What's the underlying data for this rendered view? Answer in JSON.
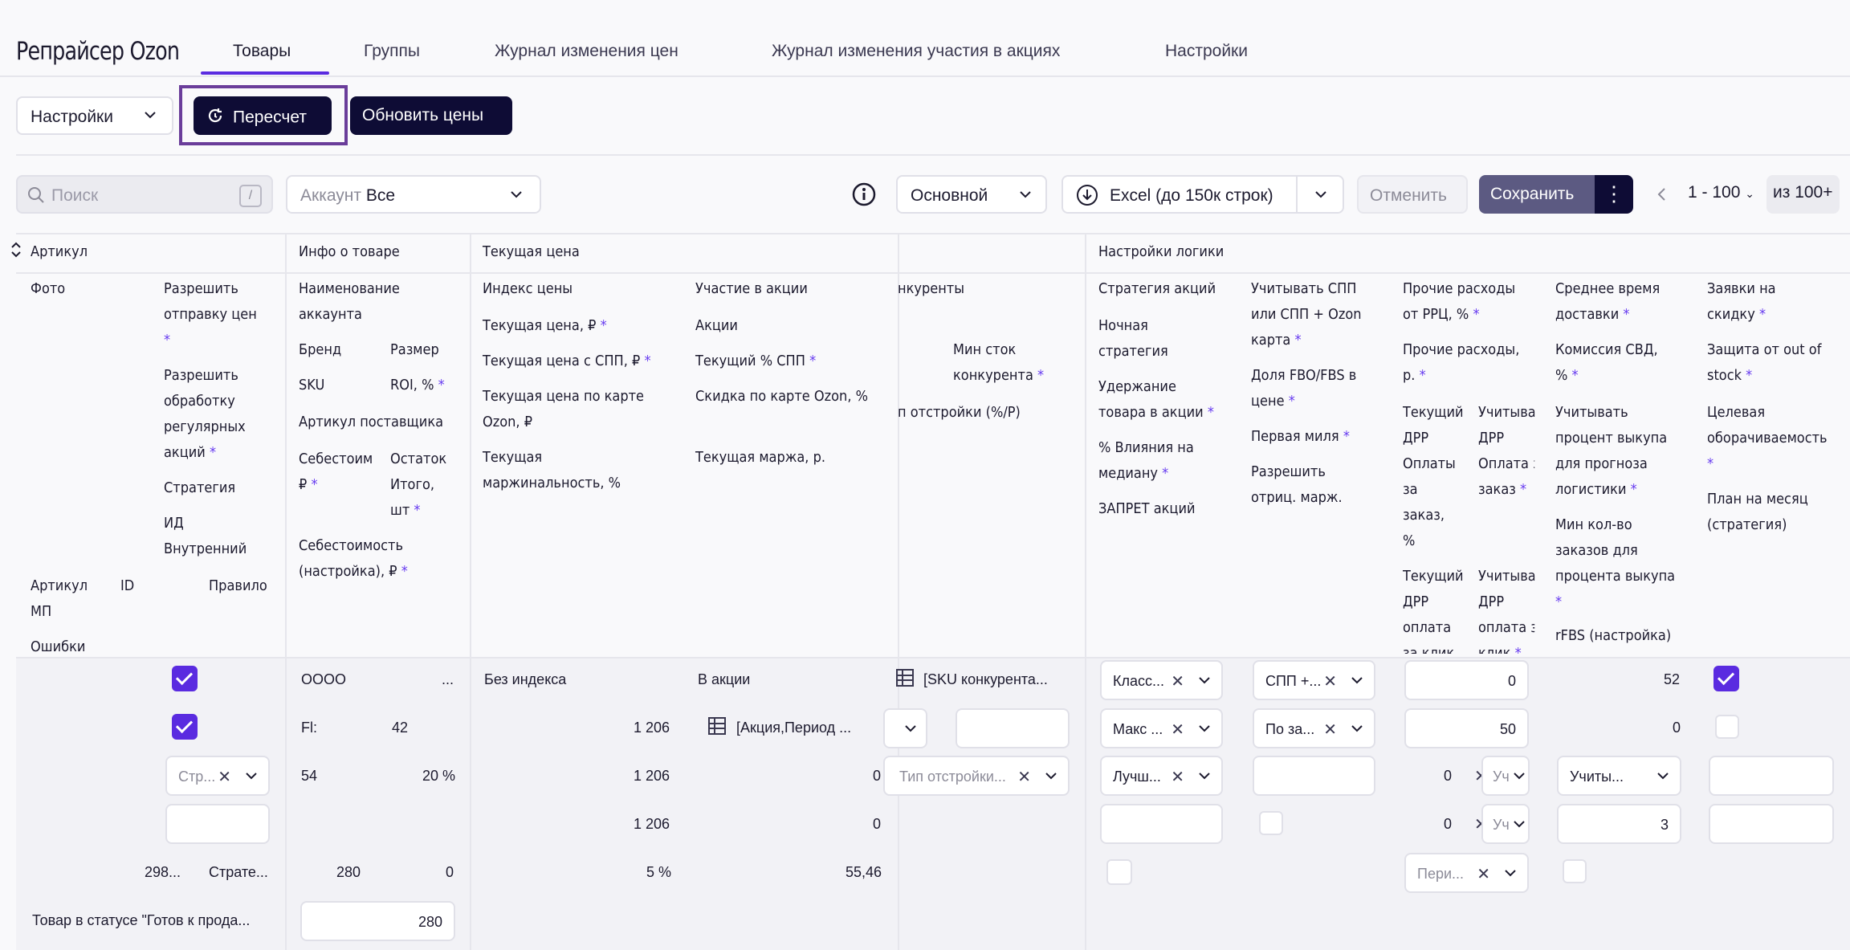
{
  "app": {
    "title": "Репрайсер Ozon"
  },
  "tabs": [
    "Товары",
    "Группы",
    "Журнал изменения цен",
    "Журнал изменения участия в акциях",
    "Настройки"
  ],
  "toolbar": {
    "settings_select": "Настройки",
    "recalc": "Пересчет",
    "update_prices": "Обновить цены"
  },
  "filters": {
    "search_placeholder": "Поиск",
    "search_kbd": "/",
    "account_label": "Аккаунт",
    "account_value": "Все",
    "view_select": "Основной",
    "excel": "Excel (до 150к строк)",
    "cancel": "Отменить",
    "save": "Сохранить",
    "pager_range": "1 - 100",
    "pager_total": "из 100+"
  },
  "groups": [
    "Артикул",
    "Инфо о товаре",
    "Текущая цена",
    "Настройки логики"
  ],
  "headers": {
    "photo": "Фото",
    "allow_send_1": "Разрешить",
    "allow_send_2": "отправку цен",
    "allow_reg_1": "Разрешить",
    "allow_reg_2": "обработку",
    "allow_reg_3": "регулярных",
    "allow_reg_4": "акций",
    "strategy": "Стратегия",
    "int_id_1": "ИД",
    "int_id_2": "Внутренний",
    "art_mp_1": "Артикул",
    "art_mp_2": "МП",
    "id": "ID",
    "rule": "Правило",
    "errors": "Ошибки",
    "acc_name_1": "Наименование",
    "acc_name_2": "аккаунта",
    "brand": "Бренд",
    "size": "Размер",
    "sku": "SKU",
    "roi": "ROI, %",
    "vendor_art": "Артикул поставщика",
    "cost_1": "Себестоим",
    "cost_2": "₽",
    "stock_1": "Остаток",
    "stock_2": "Итого,",
    "stock_3": "шт",
    "cost_set_1": "Себестоимость",
    "cost_set_2": "(настройка), ₽",
    "price_index": "Индекс цены",
    "cur_price": "Текущая цена, ₽",
    "cur_price_spp": "Текущая цена с СПП, ₽",
    "cur_price_card_1": "Текущая цена по карте",
    "cur_price_card_2": "Ozon, ₽",
    "cur_margin_1": "Текущая",
    "cur_margin_2": "маржинальность, %",
    "promo_part": "Участие в акции",
    "promos": "Акции",
    "cur_spp": "Текущий % СПП",
    "card_discount": "Скидка по карте Ozon, %",
    "cur_margin_rub": "Текущая маржа, р.",
    "competitors": "нкуренты",
    "min_stock_1": "Мин сток",
    "min_stock_2": "конкурента",
    "adj_type": "п отстройки (%/Р)",
    "promo_strategy": "Стратегия акций",
    "night_1": "Ночная",
    "night_2": "стратегия",
    "hold_1": "Удержание",
    "hold_2": "товара в акции",
    "influence_1": "% Влияния на",
    "influence_2": "медиану",
    "ban": "ЗАПРЕТ акций",
    "spp_1": "Учитывать СПП",
    "spp_2": "или СПП + Ozon",
    "spp_3": "карта",
    "fbo_1": "Доля FBO/FBS в",
    "fbo_2": "цене",
    "first_mile": "Первая миля",
    "neg_1": "Разрешить",
    "neg_2": "отриц. марж.",
    "other_rrc_1": "Прочие расходы",
    "other_rrc_2": "от РРЦ, %",
    "other_rub_1": "Прочие расходы,",
    "other_rub_2": "р.",
    "drr1_1": "Текущий",
    "drr1_2": "ДРР",
    "drr1_3": "Оплаты",
    "drr1_4": "за",
    "drr1_5": "заказ,",
    "drr1_6": "%",
    "drr1b_1": "Учитыва",
    "drr1b_2": "ДРР",
    "drr1b_3": "Оплата з",
    "drr1b_4": "заказ",
    "drr2_1": "Текущий",
    "drr2_2": "ДРР",
    "drr2_3": "оплата",
    "drr2_4": "за клик,",
    "drr2b_1": "Учитыва",
    "drr2b_2": "ДРР",
    "drr2b_3": "оплата з",
    "drr2b_4": "клик",
    "avg_del_1": "Среднее время",
    "avg_del_2": "доставки",
    "svd_1": "Комиссия СВД,",
    "svd_2": "%",
    "buyout_1": "Учитывать",
    "buyout_2": "процент выкупа",
    "buyout_3": "для прогноза",
    "buyout_4": "логистики",
    "min_orders_1": "Мин кол-во",
    "min_orders_2": "заказов для",
    "min_orders_3": "процента выкупа",
    "rfbs": "rFBS (настройка)",
    "disc_req_1": "Заявки на",
    "disc_req_2": "скидку",
    "oos_1": "Защита от out of",
    "oos_2": "stock",
    "turnover_1": "Целевая",
    "turnover_2": "оборачиваемость",
    "plan_1": "План на месяц",
    "plan_2": "(стратегия)"
  },
  "row": {
    "strategy_select": "Стр...",
    "art_mp": "298...",
    "rule": "Страте...",
    "status_text": "Товар в статусе \"Готов к прода...",
    "acc_name": "OOOO",
    "acc_name_more": "...",
    "brand": "Fl:",
    "size": "42",
    "sku": "54",
    "roi": "20 %",
    "cost": "280",
    "stock": "0",
    "cost_set": "280",
    "price_index": "Без индекса",
    "cur_price": "1 206",
    "cur_price_spp": "1 206",
    "cur_price_card": "1 206",
    "cur_margin_pct": "5 %",
    "promo_part": "В акции",
    "promos": "[Акция,Период ...",
    "cur_spp": "0",
    "card_discount": "0",
    "cur_margin_rub": "55,46",
    "competitors": "[SKU конкурента...",
    "adj_type": "Тип отстройки...",
    "promo_strategy": "Класс...",
    "night_strategy": "Макс ...",
    "hold": "Лучш...",
    "spp": "СПП +...",
    "fbo": "По за...",
    "other_rrc": "0",
    "other_rub": "50",
    "drr1": "0",
    "drr1b": "Уч",
    "drr2": "0",
    "drr2b": "Уч",
    "drr_period": "Пери...",
    "avg_delivery": "52",
    "svd": "0",
    "buyout": "Учиты...",
    "min_orders": "3"
  }
}
